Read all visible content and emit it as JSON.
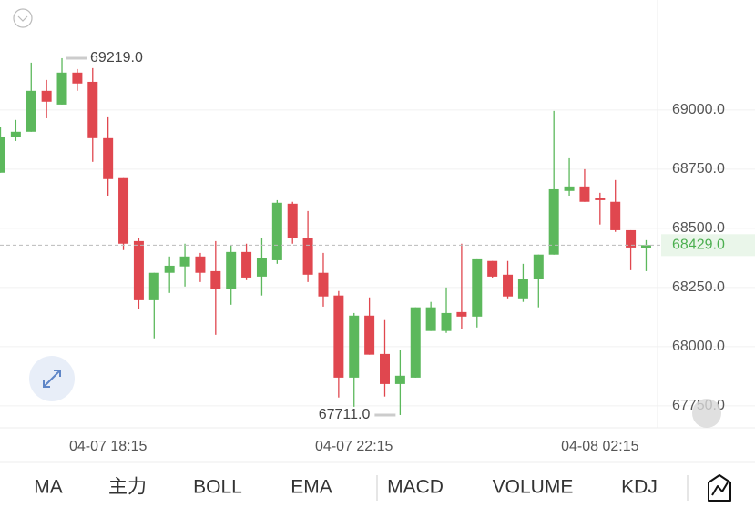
{
  "chart_data": {
    "type": "candlestick",
    "up_color": "#5cb85c",
    "down_color": "#e0474f",
    "categories": [
      null,
      null,
      null,
      null,
      null,
      null,
      null,
      "04-07 18:15",
      null,
      null,
      null,
      null,
      null,
      null,
      null,
      null,
      null,
      null,
      null,
      null,
      null,
      null,
      null,
      "04-07 22:15",
      null,
      null,
      null,
      null,
      null,
      null,
      null,
      null,
      null,
      null,
      null,
      null,
      null,
      null,
      null,
      "04-08 02:15",
      null,
      null,
      null
    ],
    "open": [
      68735,
      68888,
      68908,
      69081,
      69023,
      69158,
      69119,
      68881,
      68712,
      68446,
      68196,
      68312,
      68339,
      68381,
      68319,
      68242,
      68400,
      68296,
      68365,
      68604,
      68458,
      68312,
      68216,
      67869,
      68131,
      67969,
      67842,
      67869,
      68066,
      68066,
      68146,
      68127,
      68362,
      68304,
      68204,
      68285,
      68389,
      68658,
      68677,
      68627,
      68612,
      68492,
      68415
    ],
    "high": [
      68927,
      68958,
      69200,
      69127,
      69219,
      69173,
      69177,
      68973,
      68712,
      68458,
      68312,
      68381,
      68435,
      68396,
      68446,
      68427,
      68435,
      68458,
      68619,
      68612,
      68573,
      68396,
      68235,
      68142,
      68208,
      68112,
      67985,
      68166,
      68189,
      68250,
      68435,
      68369,
      68362,
      68362,
      68350,
      68389,
      68996,
      68796,
      68750,
      68650,
      68704,
      68492,
      68450
    ],
    "low": [
      68735,
      68869,
      68908,
      68965,
      69023,
      69081,
      68781,
      68638,
      68408,
      68158,
      68035,
      68227,
      68254,
      68273,
      68050,
      68177,
      68281,
      68216,
      68350,
      68435,
      68273,
      68169,
      67785,
      67746,
      67966,
      67789,
      67711,
      67869,
      68066,
      68058,
      68073,
      68081,
      68292,
      68204,
      68189,
      68166,
      68389,
      68638,
      68612,
      68516,
      68485,
      68323,
      68319
    ],
    "close": [
      68888,
      68908,
      69081,
      69035,
      69158,
      69112,
      68881,
      68708,
      68435,
      68196,
      68312,
      68342,
      68381,
      68312,
      68242,
      68400,
      68292,
      68373,
      68608,
      68458,
      68304,
      68212,
      67869,
      68131,
      67966,
      67842,
      67877,
      68166,
      68166,
      68142,
      68127,
      68369,
      68296,
      68212,
      68285,
      68389,
      68665,
      68677,
      68612,
      68619,
      68492,
      68419,
      68429
    ],
    "ylim": [
      67657,
      69465
    ],
    "yticks": [
      {
        "value": 67750,
        "label": "67750.0"
      },
      {
        "value": 68000,
        "label": "68000.0"
      },
      {
        "value": 68250,
        "label": "68250.0"
      },
      {
        "value": 68500,
        "label": "68500.0"
      },
      {
        "value": 68750,
        "label": "68750.0"
      },
      {
        "value": 69000,
        "label": "69000.0"
      }
    ],
    "grid": true,
    "annotations": [
      {
        "value": 69219,
        "label": "69219.0"
      },
      {
        "value": 67711,
        "label": "67711.0"
      }
    ],
    "last_price": {
      "value": 68429,
      "label": "68429.0",
      "color": "#4caf50"
    }
  },
  "indicator_tabs": [
    "MA",
    "主力",
    "BOLL",
    "EMA",
    "MACD",
    "VOLUME",
    "KDJ"
  ]
}
